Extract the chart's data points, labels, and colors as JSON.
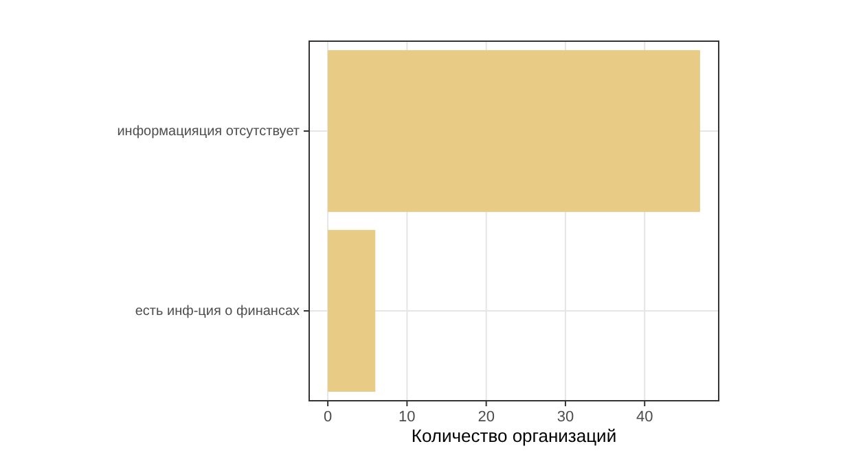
{
  "chart_data": {
    "type": "bar",
    "orientation": "horizontal",
    "categories": [
      "информацияция отсутствует",
      "есть инф-ция о финансах"
    ],
    "values": [
      47,
      6
    ],
    "color": "#e8cc86",
    "xlabel": "Количество организаций",
    "xlim": [
      -2.35,
      49.35
    ],
    "xticks": [
      0,
      10,
      20,
      30,
      40
    ],
    "grid": true
  }
}
